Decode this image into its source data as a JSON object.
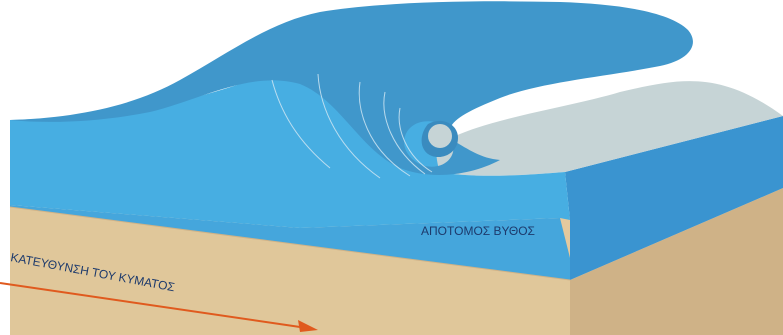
{
  "labels": {
    "seabed": "ΑΠΟΤΟΜΟΣ ΒΥΘΟΣ",
    "direction": "ΚΑΤΕΥΘΥΝΣΗ ΤΟΥ ΚΥΜΑΤΟΣ"
  },
  "colors": {
    "wave_top": "#4097cb",
    "wave_face": "#47aee2",
    "water_side": "#3a96d2",
    "foam": "#c6d4d6",
    "sand_top": "#e4c99e",
    "sand_front": "#e0c79a",
    "sand_side": "#cfb287",
    "arrow": "#e05a1e",
    "label_text": "#1d3a6c"
  }
}
